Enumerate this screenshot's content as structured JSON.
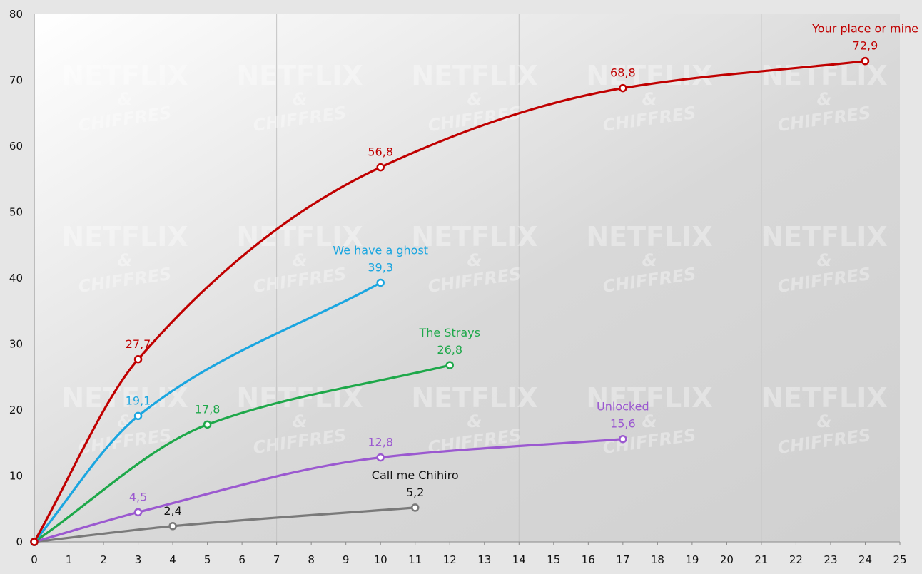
{
  "watermark": {
    "line1": "NETFLIX",
    "line2": "&",
    "line3": "CHIFFRES"
  },
  "chart_data": {
    "type": "line",
    "xlim": [
      0,
      25
    ],
    "ylim": [
      0,
      80
    ],
    "x_ticks": [
      0,
      1,
      2,
      3,
      4,
      5,
      6,
      7,
      8,
      9,
      10,
      11,
      12,
      13,
      14,
      15,
      16,
      17,
      18,
      19,
      20,
      21,
      22,
      23,
      24,
      25
    ],
    "y_ticks": [
      0,
      10,
      20,
      30,
      40,
      50,
      60,
      70,
      80
    ],
    "vertical_gridlines_at": [
      7,
      14,
      21
    ],
    "background": "gradient white to light grey",
    "series": [
      {
        "name": "Your place or mine",
        "color": "#c00000",
        "points": [
          [
            0,
            0
          ],
          [
            3,
            27.7
          ],
          [
            10,
            56.8
          ],
          [
            17,
            68.8
          ],
          [
            24,
            72.9
          ]
        ],
        "labels": [
          "",
          "27,7",
          "56,8",
          "68,8",
          "72,9"
        ]
      },
      {
        "name": "We have a ghost",
        "color": "#1ba6e0",
        "points": [
          [
            0,
            0
          ],
          [
            3,
            19.1
          ],
          [
            10,
            39.3
          ]
        ],
        "labels": [
          "",
          "19,1",
          "39,3"
        ]
      },
      {
        "name": "The Strays",
        "color": "#1ea84a",
        "points": [
          [
            0,
            0
          ],
          [
            5,
            17.8
          ],
          [
            12,
            26.8
          ]
        ],
        "labels": [
          "",
          "17,8",
          "26,8"
        ]
      },
      {
        "name": "Unlocked",
        "color": "#9b59d0",
        "points": [
          [
            0,
            0
          ],
          [
            3,
            4.5
          ],
          [
            10,
            12.8
          ],
          [
            17,
            15.6
          ]
        ],
        "labels": [
          "",
          "4,5",
          "12,8",
          "15,6"
        ]
      },
      {
        "name": "Call me Chihiro",
        "color": "#7a7a7a",
        "label_color": "#111111",
        "points": [
          [
            0,
            0
          ],
          [
            4,
            2.4
          ],
          [
            11,
            5.2
          ]
        ],
        "labels": [
          "",
          "2,4",
          "5,2"
        ]
      }
    ]
  }
}
